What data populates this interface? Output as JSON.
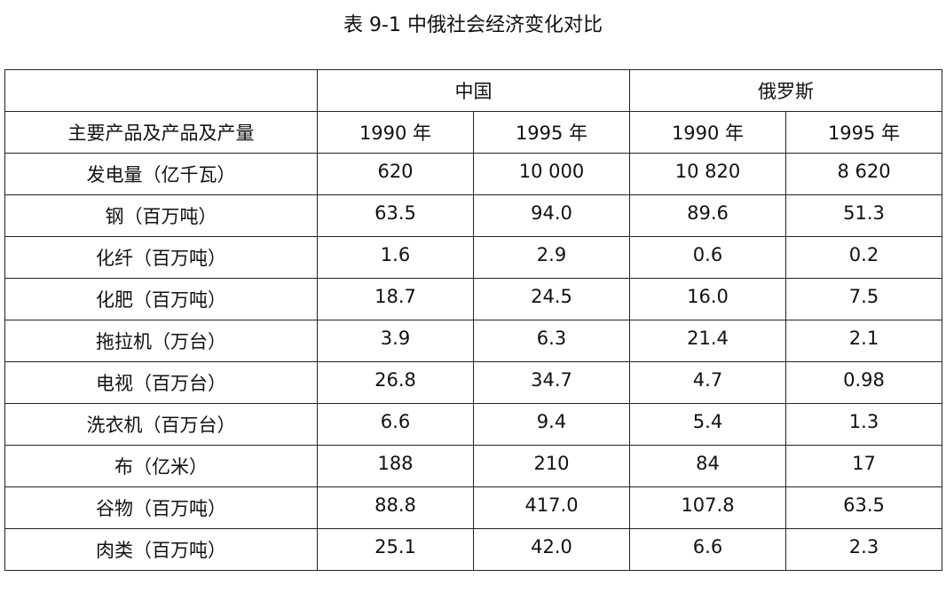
{
  "title": "表 9-1 中俄社会经济变化对比",
  "header": {
    "countries": [
      "中国",
      "俄罗斯"
    ],
    "row_label": "主要产品及产品及产量",
    "years": [
      "1990 年",
      "1995 年",
      "1990 年",
      "1995 年"
    ]
  },
  "rows": [
    {
      "label": "发电量（亿千瓦）",
      "values": [
        "620",
        "10 000",
        "10 820",
        "8 620"
      ]
    },
    {
      "label": "钢（百万吨）",
      "values": [
        "63.5",
        "94.0",
        "89.6",
        "51.3"
      ]
    },
    {
      "label": "化纤（百万吨）",
      "values": [
        "1.6",
        "2.9",
        "0.6",
        "0.2"
      ]
    },
    {
      "label": "化肥（百万吨）",
      "values": [
        "18.7",
        "24.5",
        "16.0",
        "7.5"
      ]
    },
    {
      "label": "拖拉机（万台）",
      "values": [
        "3.9",
        "6.3",
        "21.4",
        "2.1"
      ]
    },
    {
      "label": "电视（百万台）",
      "values": [
        "26.8",
        "34.7",
        "4.7",
        "0.98"
      ]
    },
    {
      "label": "洗衣机（百万台）",
      "values": [
        "6.6",
        "9.4",
        "5.4",
        "1.3"
      ]
    },
    {
      "label": "布（亿米）",
      "values": [
        "188",
        "210",
        "84",
        "17"
      ]
    },
    {
      "label": "谷物（百万吨）",
      "values": [
        "88.8",
        "417.0",
        "107.8",
        "63.5"
      ]
    },
    {
      "label": "肉类（百万吨）",
      "values": [
        "25.1",
        "42.0",
        "6.6",
        "2.3"
      ]
    }
  ]
}
